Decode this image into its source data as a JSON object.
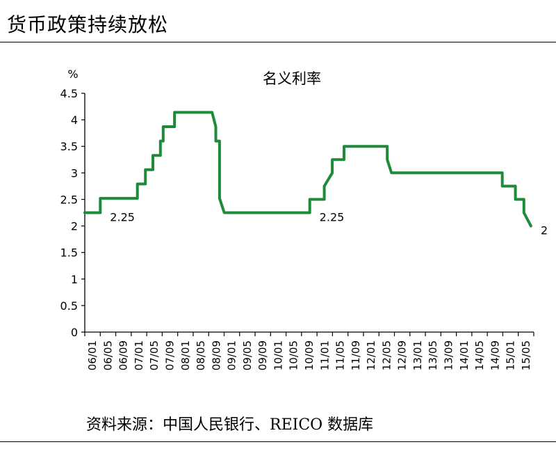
{
  "heading": "货币政策持续放松",
  "source": "资料来源：中国人民银行、REICO 数据库",
  "chart_data": {
    "type": "line",
    "title": "名义利率",
    "ylabel": "%",
    "xlabel": "",
    "ylim": [
      0,
      4.5
    ],
    "yticks": [
      "0",
      "0.5",
      "1",
      "1.5",
      "2",
      "2.5",
      "3",
      "3.5",
      "4",
      "4.5"
    ],
    "grid": false,
    "legend": "none",
    "series_color": "#1f8a3a",
    "categories": [
      "06/01",
      "06/05",
      "06/09",
      "07/01",
      "07/05",
      "07/09",
      "08/01",
      "08/05",
      "08/09",
      "09/01",
      "09/05",
      "09/09",
      "10/01",
      "10/05",
      "10/09",
      "11/01",
      "11/05",
      "11/09",
      "12/01",
      "12/05",
      "12/09",
      "13/01",
      "13/05",
      "13/09",
      "14/01",
      "14/05",
      "14/09",
      "15/01",
      "15/05"
    ],
    "series": [
      {
        "x": [
          2006.0,
          2006.33,
          2006.33,
          2006.65,
          2006.65,
          2007.12,
          2007.12,
          2007.29,
          2007.29,
          2007.45,
          2007.45,
          2007.61,
          2007.61,
          2007.67,
          2007.67,
          2007.91,
          2007.91,
          2008.71,
          2008.71,
          2008.79,
          2008.79,
          2008.87,
          2008.87,
          2008.97,
          2008.97,
          2010.79,
          2010.79,
          2011.1,
          2011.1,
          2011.27,
          2011.27,
          2011.52,
          2011.52,
          2012.44,
          2012.44,
          2012.53,
          2012.53,
          2014.89,
          2014.89,
          2015.17,
          2015.17,
          2015.35,
          2015.35,
          2015.5
        ],
        "y": [
          2.25,
          2.25,
          2.52,
          2.52,
          2.52,
          2.52,
          2.79,
          2.79,
          3.06,
          3.06,
          3.33,
          3.33,
          3.6,
          3.6,
          3.87,
          3.87,
          4.14,
          4.14,
          4.14,
          3.87,
          3.6,
          3.6,
          2.52,
          2.25,
          2.25,
          2.25,
          2.5,
          2.5,
          2.75,
          3.0,
          3.25,
          3.25,
          3.5,
          3.5,
          3.25,
          3.0,
          3.0,
          3.0,
          2.75,
          2.75,
          2.5,
          2.5,
          2.25,
          2.0
        ]
      }
    ],
    "annotations": [
      {
        "text": "2.25",
        "x": 2006.33,
        "y": 2.25
      },
      {
        "text": "2.25",
        "x": 2010.79,
        "y": 2.25
      },
      {
        "text": "2",
        "x": 2015.5,
        "y": 2.0
      }
    ]
  }
}
